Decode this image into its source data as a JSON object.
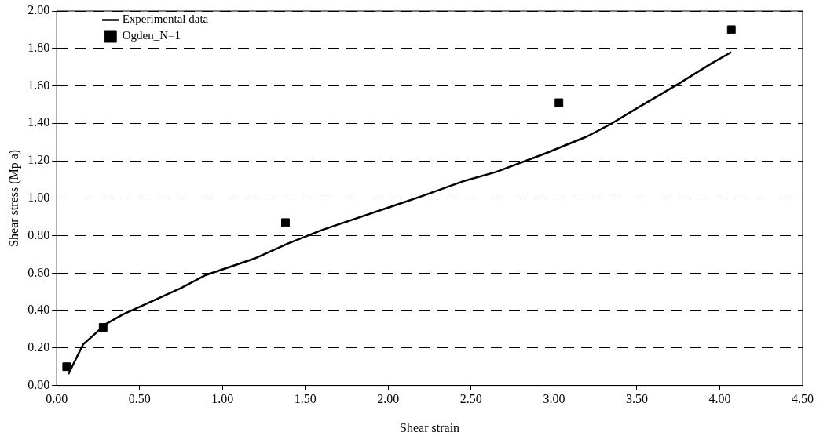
{
  "chart_data": {
    "type": "line",
    "xlabel": "Shear strain",
    "ylabel": "Shear stress (Mp a)",
    "xlim": [
      0,
      4.5
    ],
    "xticks": [
      {
        "value": 0,
        "label": "0.00"
      },
      {
        "value": 0.5,
        "label": "0.50"
      },
      {
        "value": 1,
        "label": "1.00"
      },
      {
        "value": 1.5,
        "label": "1.50"
      },
      {
        "value": 2,
        "label": "2.00"
      },
      {
        "value": 2.5,
        "label": "2.50"
      },
      {
        "value": 3,
        "label": "3.00"
      },
      {
        "value": 3.5,
        "label": "3.50"
      },
      {
        "value": 4,
        "label": "4.00"
      },
      {
        "value": 4.5,
        "label": "4.50"
      }
    ],
    "ylim": [
      0,
      2
    ],
    "yticks": [
      {
        "value": 0,
        "label": "0.00"
      },
      {
        "value": 0.2,
        "label": "0.20"
      },
      {
        "value": 0.4,
        "label": "0.40"
      },
      {
        "value": 0.6,
        "label": "0.60"
      },
      {
        "value": 0.8,
        "label": "0.80"
      },
      {
        "value": 1,
        "label": "1.00"
      },
      {
        "value": 1.2,
        "label": "1.20"
      },
      {
        "value": 1.4,
        "label": "1.40"
      },
      {
        "value": 1.6,
        "label": "1.60"
      },
      {
        "value": 1.8,
        "label": "1.80"
      },
      {
        "value": 2,
        "label": "2.00"
      }
    ],
    "grid": "y",
    "legend": "top left",
    "series": [
      {
        "name": "Experimental data",
        "color": "#000000",
        "marker": "none",
        "line_style": "solid",
        "x": [
          0.07,
          0.16,
          0.3,
          0.4,
          0.5,
          0.75,
          0.9,
          1.2,
          1.4,
          1.6,
          2.0,
          2.2,
          2.45,
          2.65,
          2.95,
          3.2,
          3.35,
          3.5,
          3.75,
          3.95,
          4.07
        ],
        "values": [
          0.06,
          0.22,
          0.33,
          0.38,
          0.42,
          0.52,
          0.59,
          0.68,
          0.76,
          0.83,
          0.95,
          1.01,
          1.09,
          1.14,
          1.24,
          1.33,
          1.4,
          1.48,
          1.61,
          1.72,
          1.78
        ]
      },
      {
        "name": "Ogden_N=1",
        "type": "scatter",
        "color": "#000000",
        "marker": "square",
        "x": [
          0.06,
          0.28,
          1.38,
          3.03,
          4.07
        ],
        "values": [
          0.1,
          0.31,
          0.87,
          1.51,
          1.9
        ]
      }
    ]
  }
}
